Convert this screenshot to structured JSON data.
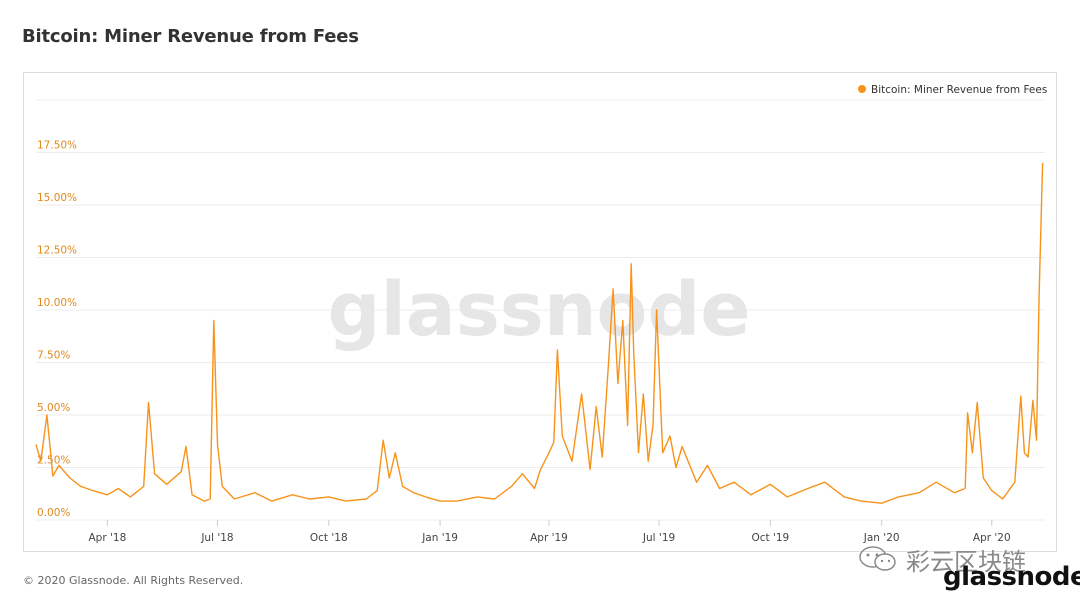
{
  "title": "Bitcoin: Miner Revenue from Fees",
  "watermark": "glassnode",
  "footer": "© 2020 Glassnode. All Rights Reserved.",
  "wechat_tag": "彩云区块链",
  "brand": "glassnode",
  "colors": {
    "series": "#f7931a",
    "axis_text": "#e08a1e",
    "grid": "#ececec"
  },
  "chart_data": {
    "type": "line",
    "title": "Bitcoin: Miner Revenue from Fees",
    "legend": {
      "position": "top-right",
      "entries": [
        "Bitcoin: Miner Revenue from Fees"
      ]
    },
    "y_axis": {
      "range": [
        0,
        20
      ],
      "ticks": [
        0,
        2.5,
        5,
        7.5,
        10,
        12.5,
        15,
        17.5
      ],
      "tick_labels": [
        "0.00%",
        "2.50%",
        "5.00%",
        "7.50%",
        "10.00%",
        "12.50%",
        "15.00%",
        "17.50%"
      ]
    },
    "x_axis": {
      "range": [
        "2018-02-01",
        "2020-05-15"
      ],
      "ticks": [
        "2018-04-01",
        "2018-07-01",
        "2018-10-01",
        "2019-01-01",
        "2019-04-01",
        "2019-07-01",
        "2019-10-01",
        "2020-01-01",
        "2020-04-01"
      ],
      "tick_labels": [
        "Apr '18",
        "Jul '18",
        "Oct '18",
        "Jan '19",
        "Apr '19",
        "Jul '19",
        "Oct '19",
        "Jan '20",
        "Apr '20"
      ]
    },
    "grid": true,
    "series": [
      {
        "name": "Bitcoin: Miner Revenue from Fees",
        "points": [
          [
            "2018-02-01",
            3.6
          ],
          [
            "2018-02-05",
            2.8
          ],
          [
            "2018-02-10",
            5.0
          ],
          [
            "2018-02-15",
            2.1
          ],
          [
            "2018-02-20",
            2.6
          ],
          [
            "2018-03-01",
            2.0
          ],
          [
            "2018-03-10",
            1.6
          ],
          [
            "2018-03-20",
            1.4
          ],
          [
            "2018-04-01",
            1.2
          ],
          [
            "2018-04-10",
            1.5
          ],
          [
            "2018-04-20",
            1.1
          ],
          [
            "2018-05-01",
            1.6
          ],
          [
            "2018-05-05",
            5.6
          ],
          [
            "2018-05-10",
            2.2
          ],
          [
            "2018-05-20",
            1.7
          ],
          [
            "2018-06-01",
            2.3
          ],
          [
            "2018-06-05",
            3.5
          ],
          [
            "2018-06-10",
            1.2
          ],
          [
            "2018-06-20",
            0.9
          ],
          [
            "2018-06-25",
            1.0
          ],
          [
            "2018-06-28",
            9.5
          ],
          [
            "2018-07-01",
            3.6
          ],
          [
            "2018-07-05",
            1.6
          ],
          [
            "2018-07-15",
            1.0
          ],
          [
            "2018-08-01",
            1.3
          ],
          [
            "2018-08-15",
            0.9
          ],
          [
            "2018-09-01",
            1.2
          ],
          [
            "2018-09-15",
            1.0
          ],
          [
            "2018-10-01",
            1.1
          ],
          [
            "2018-10-15",
            0.9
          ],
          [
            "2018-11-01",
            1.0
          ],
          [
            "2018-11-10",
            1.4
          ],
          [
            "2018-11-15",
            3.8
          ],
          [
            "2018-11-20",
            2.0
          ],
          [
            "2018-11-25",
            3.2
          ],
          [
            "2018-12-01",
            1.6
          ],
          [
            "2018-12-10",
            1.3
          ],
          [
            "2018-12-20",
            1.1
          ],
          [
            "2019-01-01",
            0.9
          ],
          [
            "2019-01-15",
            0.9
          ],
          [
            "2019-02-01",
            1.1
          ],
          [
            "2019-02-15",
            1.0
          ],
          [
            "2019-03-01",
            1.6
          ],
          [
            "2019-03-10",
            2.2
          ],
          [
            "2019-03-20",
            1.5
          ],
          [
            "2019-03-25",
            2.4
          ],
          [
            "2019-04-01",
            3.2
          ],
          [
            "2019-04-05",
            3.7
          ],
          [
            "2019-04-08",
            8.1
          ],
          [
            "2019-04-12",
            4.0
          ],
          [
            "2019-04-20",
            2.8
          ],
          [
            "2019-04-28",
            6.0
          ],
          [
            "2019-05-05",
            2.4
          ],
          [
            "2019-05-10",
            5.4
          ],
          [
            "2019-05-15",
            3.0
          ],
          [
            "2019-05-20",
            7.3
          ],
          [
            "2019-05-24",
            11.0
          ],
          [
            "2019-05-28",
            6.5
          ],
          [
            "2019-06-01",
            9.5
          ],
          [
            "2019-06-05",
            4.5
          ],
          [
            "2019-06-08",
            12.2
          ],
          [
            "2019-06-10",
            8.0
          ],
          [
            "2019-06-14",
            3.2
          ],
          [
            "2019-06-18",
            6.0
          ],
          [
            "2019-06-22",
            2.8
          ],
          [
            "2019-06-26",
            4.5
          ],
          [
            "2019-06-29",
            10.0
          ],
          [
            "2019-07-04",
            3.2
          ],
          [
            "2019-07-10",
            4.0
          ],
          [
            "2019-07-15",
            2.5
          ],
          [
            "2019-07-20",
            3.5
          ],
          [
            "2019-08-01",
            1.8
          ],
          [
            "2019-08-10",
            2.6
          ],
          [
            "2019-08-20",
            1.5
          ],
          [
            "2019-09-01",
            1.8
          ],
          [
            "2019-09-15",
            1.2
          ],
          [
            "2019-10-01",
            1.7
          ],
          [
            "2019-10-15",
            1.1
          ],
          [
            "2019-11-01",
            1.5
          ],
          [
            "2019-11-15",
            1.8
          ],
          [
            "2019-12-01",
            1.1
          ],
          [
            "2019-12-15",
            0.9
          ],
          [
            "2020-01-01",
            0.8
          ],
          [
            "2020-01-15",
            1.1
          ],
          [
            "2020-02-01",
            1.3
          ],
          [
            "2020-02-15",
            1.8
          ],
          [
            "2020-03-01",
            1.3
          ],
          [
            "2020-03-10",
            1.5
          ],
          [
            "2020-03-12",
            5.1
          ],
          [
            "2020-03-16",
            3.2
          ],
          [
            "2020-03-20",
            5.6
          ],
          [
            "2020-03-25",
            2.0
          ],
          [
            "2020-04-01",
            1.4
          ],
          [
            "2020-04-10",
            1.0
          ],
          [
            "2020-04-20",
            1.8
          ],
          [
            "2020-04-25",
            5.9
          ],
          [
            "2020-04-28",
            3.2
          ],
          [
            "2020-05-01",
            3.0
          ],
          [
            "2020-05-05",
            5.7
          ],
          [
            "2020-05-08",
            3.8
          ],
          [
            "2020-05-10",
            10.5
          ],
          [
            "2020-05-13",
            17.0
          ]
        ]
      }
    ]
  }
}
